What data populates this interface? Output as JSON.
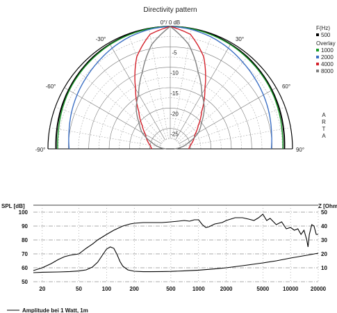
{
  "polar_chart": {
    "title": "Directivity pattern",
    "angle_labels": {
      "top": "0°/ 0 dB",
      "pos30": "30°",
      "neg30": "-30°",
      "pos60": "60°",
      "neg60": "-60°",
      "pos90": "90°",
      "neg90": "-90°"
    },
    "ring_labels": [
      "-5",
      "-10",
      "-15",
      "-20",
      "-25"
    ],
    "legend": {
      "header": "F(Hz)",
      "base": {
        "name": "500",
        "color": "#000000"
      },
      "overlay_title": "Overlay",
      "overlay": [
        {
          "name": "1000",
          "color": "#1a9b2a"
        },
        {
          "name": "2000",
          "color": "#3b6fc4"
        },
        {
          "name": "4000",
          "color": "#d4202a"
        },
        {
          "name": "8000",
          "color": "#808080"
        }
      ]
    },
    "side_label": [
      "A",
      "R",
      "T",
      "A"
    ]
  },
  "chart_data": [
    {
      "type": "line",
      "coordinate_system": "polar",
      "title": "Directivity pattern",
      "angle_range_deg": [
        -90,
        90
      ],
      "radial_range_db": [
        -30,
        0
      ],
      "angles_deg": [
        0,
        10,
        20,
        30,
        40,
        50,
        60,
        70,
        80,
        90
      ],
      "series": [
        {
          "name": "500",
          "color": "#000000",
          "db": [
            0,
            -0.1,
            -0.2,
            -0.4,
            -0.6,
            -0.9,
            -1.2,
            -1.5,
            -1.8,
            -2.0
          ]
        },
        {
          "name": "1000",
          "color": "#1a9b2a",
          "db": [
            0,
            -0.1,
            -0.3,
            -0.5,
            -0.8,
            -1.1,
            -1.4,
            -1.8,
            -2.2,
            -2.4
          ]
        },
        {
          "name": "2000",
          "color": "#3b6fc4",
          "db": [
            0,
            -0.3,
            -0.8,
            -1.5,
            -2.3,
            -3.0,
            -3.6,
            -4.2,
            -4.8,
            -5.2
          ]
        },
        {
          "name": "4000",
          "color": "#d4202a",
          "db": [
            0,
            -1.5,
            -6,
            -13,
            -18,
            -21,
            -23,
            -24,
            -25,
            -25.5
          ]
        },
        {
          "name": "8000",
          "color": "#808080",
          "db": [
            0,
            -4,
            -10,
            -14.5,
            -17,
            -20,
            -22,
            -25,
            -27,
            -29
          ]
        }
      ]
    },
    {
      "type": "line",
      "x_scale": "log",
      "xlabel": "",
      "ylabel_left": "SPL [dB]",
      "ylabel_right": "Z [Ohm]",
      "xlim": [
        16,
        20000
      ],
      "ylim_left": [
        50,
        105
      ],
      "ylim_right": [
        0,
        55
      ],
      "x_ticks": [
        20,
        50,
        100,
        200,
        500,
        1000,
        2000,
        5000,
        10000,
        20000
      ],
      "y_ticks_left": [
        50,
        60,
        70,
        80,
        90,
        100
      ],
      "y_ticks_right": [
        10,
        20,
        30,
        40,
        50
      ],
      "series": [
        {
          "name": "Amplitude bei 1 Watt, 1m",
          "axis": "left",
          "color": "#000000",
          "x": [
            16,
            20,
            25,
            30,
            35,
            40,
            50,
            60,
            70,
            80,
            100,
            120,
            150,
            180,
            200,
            250,
            300,
            400,
            500,
            600,
            700,
            800,
            900,
            1000,
            1100,
            1200,
            1300,
            1500,
            1800,
            2000,
            2500,
            3000,
            3500,
            4000,
            4500,
            5000,
            5500,
            6000,
            7000,
            8000,
            9000,
            10000,
            11000,
            12000,
            13000,
            14000,
            15000,
            15500,
            16000,
            17000,
            18000,
            19000,
            20000
          ],
          "y": [
            58,
            60,
            63,
            66,
            68,
            69,
            70,
            74,
            77,
            80,
            84,
            87,
            90,
            91.5,
            92,
            92.5,
            92.5,
            92.5,
            93,
            93.5,
            94,
            93.5,
            94.5,
            94.5,
            91,
            89,
            89.5,
            91.5,
            92.5,
            94,
            96,
            96,
            95,
            94,
            96,
            98.5,
            94,
            95.5,
            91,
            93,
            88,
            89,
            87,
            88,
            84,
            87,
            80,
            75,
            84,
            91,
            90,
            84,
            84
          ]
        },
        {
          "name": "",
          "axis": "right",
          "color": "#000000",
          "x": [
            16,
            20,
            30,
            40,
            50,
            60,
            70,
            80,
            90,
            100,
            110,
            120,
            130,
            140,
            150,
            170,
            200,
            250,
            300,
            400,
            500,
            700,
            1000,
            1500,
            2000,
            3000,
            5000,
            7000,
            10000,
            15000,
            20000
          ],
          "y": [
            6.5,
            6.8,
            7,
            7.3,
            7.7,
            8.5,
            10.5,
            14,
            19,
            23.5,
            25,
            24,
            19.5,
            14.5,
            11.2,
            8.5,
            7.5,
            7.2,
            7.2,
            7.3,
            7.4,
            7.8,
            8.3,
            9.2,
            10,
            11.5,
            13.5,
            15,
            17,
            19,
            20.5
          ]
        }
      ]
    }
  ],
  "bottom_chart": {
    "ylabel_left": "SPL [dB]",
    "ylabel_right": "Z [Ohm]",
    "legend_label": "Amplitude bei 1 Watt, 1m"
  }
}
